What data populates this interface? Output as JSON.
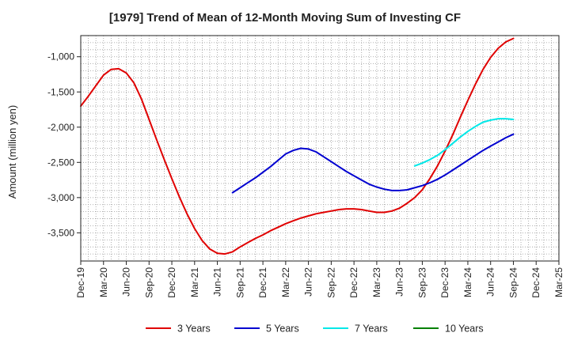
{
  "chart_data": {
    "type": "line",
    "title": "[1979]  Trend of Mean of 12-Month Moving Sum of Investing CF",
    "xlabel": "",
    "ylabel": "Amount (million yen)",
    "ylim": [
      -3900,
      -700
    ],
    "y_ticks": [
      -1000,
      -1500,
      -2000,
      -2500,
      -3000,
      -3500
    ],
    "y_tick_labels": [
      "-1,000",
      "-1,500",
      "-2,000",
      "-2,500",
      "-3,000",
      "-3,500"
    ],
    "x_tick_labels": [
      "Dec-19",
      "Mar-20",
      "Jun-20",
      "Sep-20",
      "Dec-20",
      "Mar-21",
      "Jun-21",
      "Sep-21",
      "Dec-21",
      "Mar-22",
      "Jun-22",
      "Sep-22",
      "Dec-22",
      "Mar-23",
      "Jun-23",
      "Sep-23",
      "Dec-23",
      "Mar-24",
      "Jun-24",
      "Sep-24",
      "Dec-24",
      "Mar-25"
    ],
    "x_range": [
      0,
      63
    ],
    "grid": true,
    "legend_position": "bottom",
    "series": [
      {
        "name": "3 Years",
        "color": "#e00000",
        "x": [
          0,
          1,
          2,
          3,
          4,
          5,
          6,
          7,
          8,
          9,
          10,
          11,
          12,
          13,
          14,
          15,
          16,
          17,
          18,
          19,
          20,
          21,
          22,
          23,
          24,
          25,
          26,
          27,
          28,
          29,
          30,
          31,
          32,
          33,
          34,
          35,
          36,
          37,
          38,
          39,
          40,
          41,
          42,
          43,
          44,
          45,
          46,
          47,
          48,
          49,
          50,
          51,
          52,
          53,
          54,
          55,
          56,
          57
        ],
        "values": [
          -1700,
          -1560,
          -1410,
          -1260,
          -1180,
          -1170,
          -1230,
          -1370,
          -1600,
          -1890,
          -2180,
          -2460,
          -2730,
          -2990,
          -3230,
          -3440,
          -3610,
          -3730,
          -3790,
          -3800,
          -3770,
          -3700,
          -3640,
          -3580,
          -3530,
          -3470,
          -3420,
          -3370,
          -3330,
          -3290,
          -3260,
          -3230,
          -3210,
          -3190,
          -3170,
          -3160,
          -3160,
          -3170,
          -3190,
          -3210,
          -3210,
          -3190,
          -3150,
          -3080,
          -3000,
          -2890,
          -2730,
          -2550,
          -2340,
          -2110,
          -1860,
          -1620,
          -1390,
          -1180,
          -1010,
          -880,
          -790,
          -740
        ]
      },
      {
        "name": "5 Years",
        "color": "#0000d0",
        "x": [
          20,
          21,
          22,
          23,
          24,
          25,
          26,
          27,
          28,
          29,
          30,
          31,
          32,
          33,
          34,
          35,
          36,
          37,
          38,
          39,
          40,
          41,
          42,
          43,
          44,
          45,
          46,
          47,
          48,
          49,
          50,
          51,
          52,
          53,
          54,
          55,
          56,
          57
        ],
        "values": [
          -2930,
          -2860,
          -2790,
          -2720,
          -2640,
          -2560,
          -2470,
          -2380,
          -2330,
          -2300,
          -2310,
          -2350,
          -2420,
          -2490,
          -2560,
          -2630,
          -2690,
          -2750,
          -2810,
          -2850,
          -2880,
          -2900,
          -2900,
          -2890,
          -2860,
          -2830,
          -2790,
          -2740,
          -2680,
          -2610,
          -2540,
          -2470,
          -2400,
          -2330,
          -2270,
          -2210,
          -2150,
          -2100
        ]
      },
      {
        "name": "7 Years",
        "color": "#00e8e8",
        "x": [
          44,
          45,
          46,
          47,
          48,
          49,
          50,
          51,
          52,
          53,
          54,
          55,
          56,
          57
        ],
        "values": [
          -2550,
          -2510,
          -2460,
          -2400,
          -2320,
          -2230,
          -2140,
          -2060,
          -1990,
          -1930,
          -1900,
          -1880,
          -1880,
          -1890
        ]
      },
      {
        "name": "10 Years",
        "color": "#008000",
        "x": [],
        "values": []
      }
    ]
  }
}
